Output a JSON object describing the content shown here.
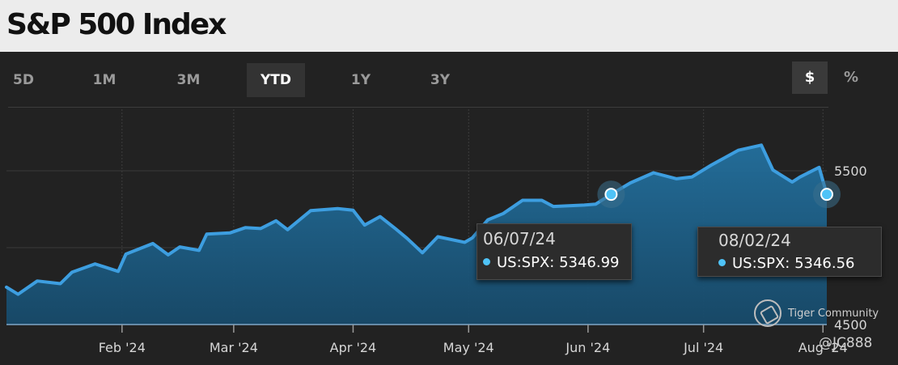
{
  "header": {
    "title": "S&P 500 Index"
  },
  "range_tabs": [
    {
      "label": "5D",
      "active": false
    },
    {
      "label": "1M",
      "active": false
    },
    {
      "label": "3M",
      "active": false
    },
    {
      "label": "YTD",
      "active": true
    },
    {
      "label": "1Y",
      "active": false
    },
    {
      "label": "3Y",
      "active": false
    }
  ],
  "unit_toggle": [
    {
      "label": "$",
      "active": true
    },
    {
      "label": "%",
      "active": false
    }
  ],
  "colors": {
    "line": "#3d9ee0",
    "area": "#1f5f86",
    "marker": "#4fc3f7",
    "grid": "#3a3a3a"
  },
  "chart_data": {
    "type": "area",
    "series": [
      {
        "name": "US:SPX",
        "x": [
          "2024-01-02",
          "2024-01-05",
          "2024-01-10",
          "2024-01-16",
          "2024-01-19",
          "2024-01-25",
          "2024-01-31",
          "2024-02-02",
          "2024-02-09",
          "2024-02-13",
          "2024-02-16",
          "2024-02-21",
          "2024-02-23",
          "2024-02-29",
          "2024-03-04",
          "2024-03-08",
          "2024-03-12",
          "2024-03-15",
          "2024-03-21",
          "2024-03-28",
          "2024-04-01",
          "2024-04-04",
          "2024-04-08",
          "2024-04-12",
          "2024-04-15",
          "2024-04-19",
          "2024-04-23",
          "2024-04-30",
          "2024-05-02",
          "2024-05-06",
          "2024-05-10",
          "2024-05-15",
          "2024-05-20",
          "2024-05-23",
          "2024-05-31",
          "2024-06-03",
          "2024-06-07",
          "2024-06-12",
          "2024-06-18",
          "2024-06-24",
          "2024-06-28",
          "2024-07-03",
          "2024-07-10",
          "2024-07-16",
          "2024-07-19",
          "2024-07-24",
          "2024-07-26",
          "2024-07-31",
          "2024-08-02"
        ],
        "values": [
          4743,
          4697,
          4783,
          4766,
          4840,
          4894,
          4846,
          4958,
          5027,
          4953,
          5005,
          4982,
          5088,
          5096,
          5130,
          5124,
          5175,
          5117,
          5241,
          5254,
          5243,
          5147,
          5202,
          5123,
          5061,
          4967,
          5071,
          5035,
          5064,
          5181,
          5222,
          5308,
          5308,
          5268,
          5277,
          5283,
          5347,
          5421,
          5487,
          5448,
          5460,
          5537,
          5633,
          5667,
          5505,
          5427,
          5459,
          5522,
          5346.56
        ]
      }
    ],
    "x_ticks": [
      "Feb '24",
      "Mar '24",
      "Apr '24",
      "May '24",
      "Jun '24",
      "Jul '24",
      "Aug '24"
    ],
    "y_ticks": [
      "5500",
      "4500"
    ],
    "ylim": [
      4500,
      5900
    ],
    "grid": true,
    "tooltips": [
      {
        "date": "06/07/24",
        "series": "US:SPX",
        "value": "5346.99"
      },
      {
        "date": "08/02/24",
        "series": "US:SPX",
        "value": "5346.56"
      }
    ]
  },
  "watermark": {
    "name": "Tiger Community",
    "user": "@JC888"
  }
}
